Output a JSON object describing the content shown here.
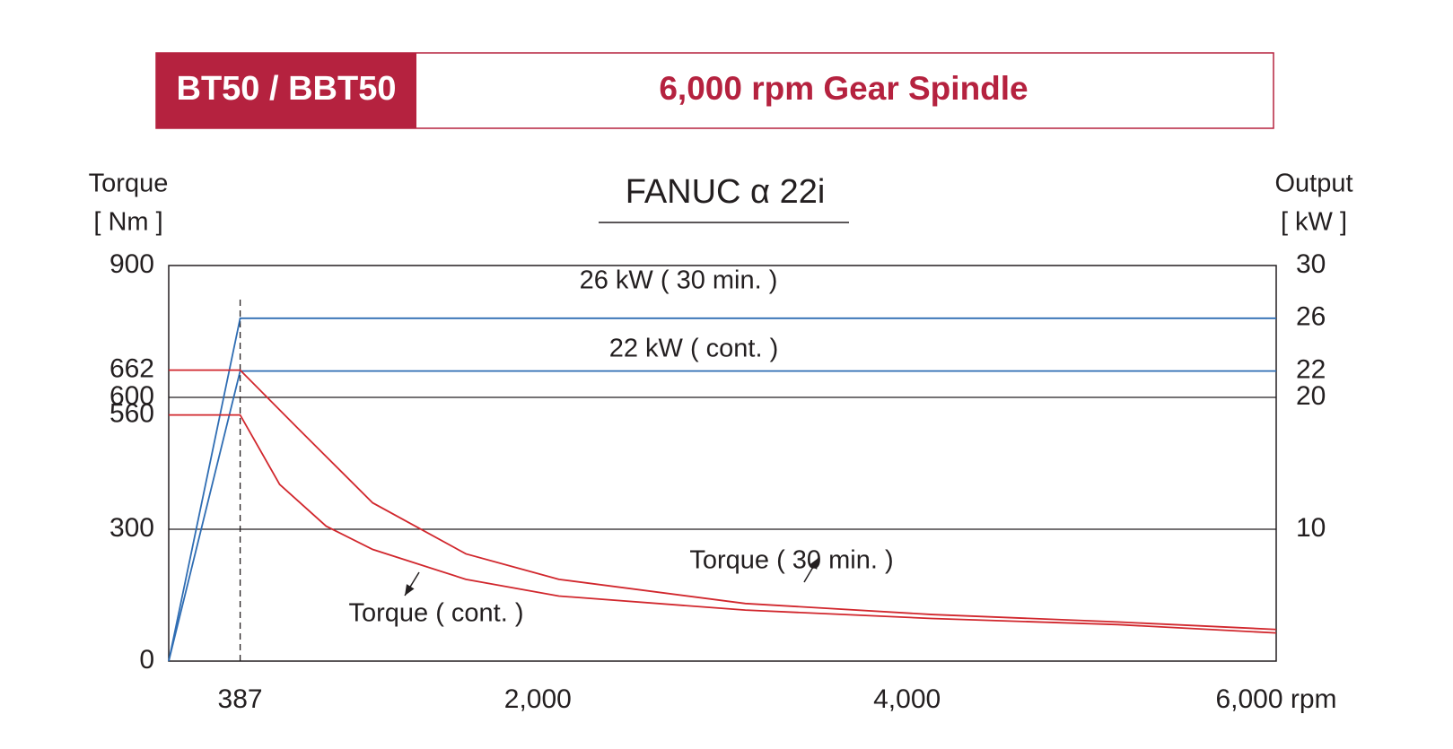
{
  "header": {
    "badge": "BT50 / BBT50",
    "title": "6,000 rpm Gear Spindle"
  },
  "chart_data": {
    "type": "line",
    "title": "FANUC α 22i",
    "ylabel": [
      "Torque",
      "[ Nm ]"
    ],
    "y2label": [
      "Output",
      "[ kW ]"
    ],
    "xlim": [
      0,
      6000
    ],
    "ylim": [
      0,
      900
    ],
    "y2lim": [
      0,
      30
    ],
    "xticks": [
      {
        "value": 387,
        "label": "387"
      },
      {
        "value": 2000,
        "label": "2,000"
      },
      {
        "value": 4000,
        "label": "4,000"
      },
      {
        "value": 6000,
        "label": "6,000 rpm"
      }
    ],
    "yticks": [
      0,
      300,
      560,
      600,
      662,
      900
    ],
    "y2ticks": [
      10,
      20,
      22,
      26,
      30
    ],
    "ygrid": [
      300,
      600
    ],
    "vlines": [
      387
    ],
    "series": [
      {
        "name": "26 kW  ( 30 min. )",
        "color": "#2f6db3",
        "axis": "y2",
        "x": [
          0,
          387,
          6000
        ],
        "values": [
          0,
          26,
          26
        ]
      },
      {
        "name": "22 kW  ( cont. )",
        "color": "#2f6db3",
        "axis": "y2",
        "x": [
          0,
          387,
          6000
        ],
        "values": [
          0,
          22,
          22
        ]
      },
      {
        "name": "Torque ( 30 min. )",
        "color": "#d1272d",
        "x": [
          0,
          387,
          701,
          1105,
          1610,
          2114,
          3124,
          4133,
          5142,
          6000
        ],
        "values": [
          662,
          662,
          529,
          360,
          244,
          186,
          131,
          106,
          89,
          72
        ]
      },
      {
        "name": "Torque ( cont. )",
        "color": "#d1272d",
        "x": [
          0,
          387,
          601,
          853,
          1105,
          1610,
          2114,
          3124,
          4133,
          5142,
          6000
        ],
        "values": [
          560,
          560,
          402,
          307,
          254,
          186,
          148,
          116,
          97,
          83,
          64
        ]
      }
    ]
  }
}
